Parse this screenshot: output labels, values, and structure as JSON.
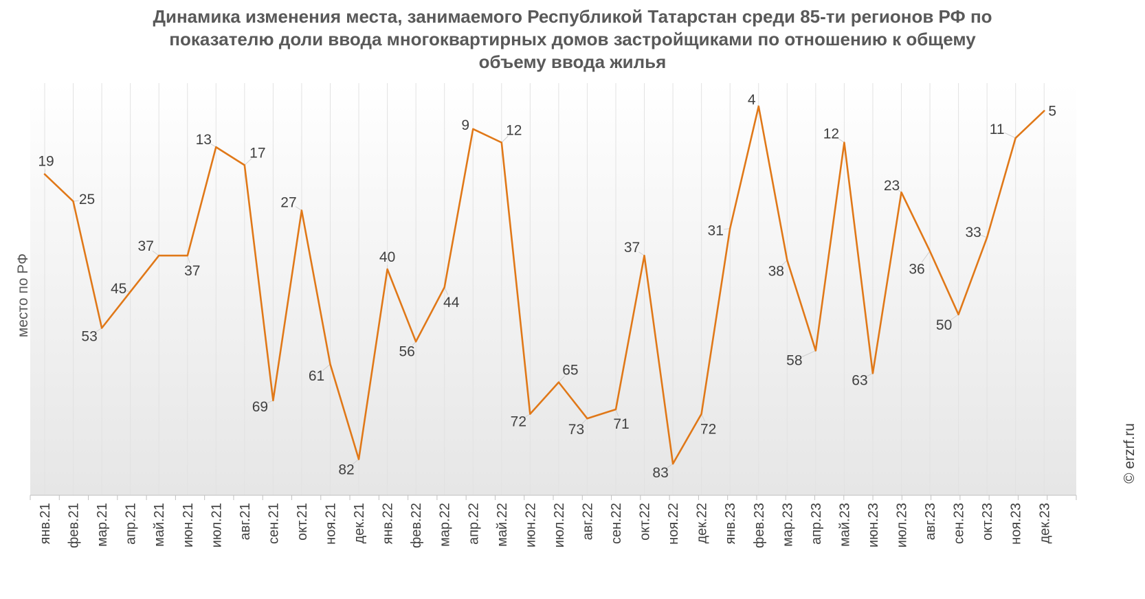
{
  "chart_data": {
    "type": "line",
    "title_lines": [
      "Динамика изменения места, занимаемого Республикой Татарстан среди 85-ти регионов РФ по",
      "показателю доли ввода многоквартирных домов застройщиками по отношению к общему",
      "объему ввода жилья"
    ],
    "xlabel": "",
    "ylabel": "место по РФ",
    "ylim": [
      0,
      85
    ],
    "y_inverted": true,
    "grid": "vertical",
    "line_color": "#E07818",
    "categories": [
      "янв.21",
      "фев.21",
      "мар.21",
      "апр.21",
      "май.21",
      "июн.21",
      "июл.21",
      "авг.21",
      "сен.21",
      "окт.21",
      "ноя.21",
      "дек.21",
      "янв.22",
      "фев.22",
      "мар.22",
      "апр.22",
      "май.22",
      "июн.22",
      "июл.22",
      "авг.22",
      "сен.22",
      "окт.22",
      "ноя.22",
      "дек.22",
      "янв.23",
      "фев.23",
      "мар.23",
      "апр.23",
      "май.23",
      "июн.23",
      "июл.23",
      "авг.23",
      "сен.23",
      "окт.23",
      "ноя.23",
      "дек.23"
    ],
    "series": [
      {
        "values": [
          19,
          25,
          53,
          45,
          37,
          37,
          13,
          17,
          69,
          27,
          61,
          82,
          40,
          56,
          44,
          9,
          12,
          72,
          65,
          73,
          71,
          37,
          83,
          72,
          31,
          4,
          38,
          58,
          12,
          63,
          23,
          36,
          50,
          33,
          11,
          5
        ]
      }
    ]
  },
  "watermark": "© erzrf.ru"
}
